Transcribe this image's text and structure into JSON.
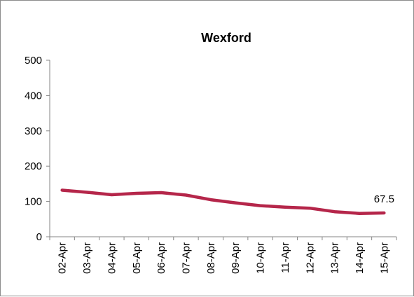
{
  "chart_data": {
    "type": "line",
    "title": "Wexford",
    "xlabel": "",
    "ylabel": "",
    "categories": [
      "02-Apr",
      "03-Apr",
      "04-Apr",
      "05-Apr",
      "06-Apr",
      "07-Apr",
      "08-Apr",
      "09-Apr",
      "10-Apr",
      "11-Apr",
      "12-Apr",
      "13-Apr",
      "14-Apr",
      "15-Apr"
    ],
    "series": [
      {
        "values": [
          132,
          126,
          119,
          123,
          125,
          118,
          105,
          96,
          88,
          84,
          81,
          71,
          66,
          67.5
        ],
        "color": "#b5264a"
      }
    ],
    "ylim": [
      0,
      500
    ],
    "yticks": [
      0,
      100,
      200,
      300,
      400,
      500
    ],
    "data_labels": [
      {
        "index": 13,
        "text": "67.5"
      }
    ],
    "grid": false,
    "legend": "none"
  }
}
